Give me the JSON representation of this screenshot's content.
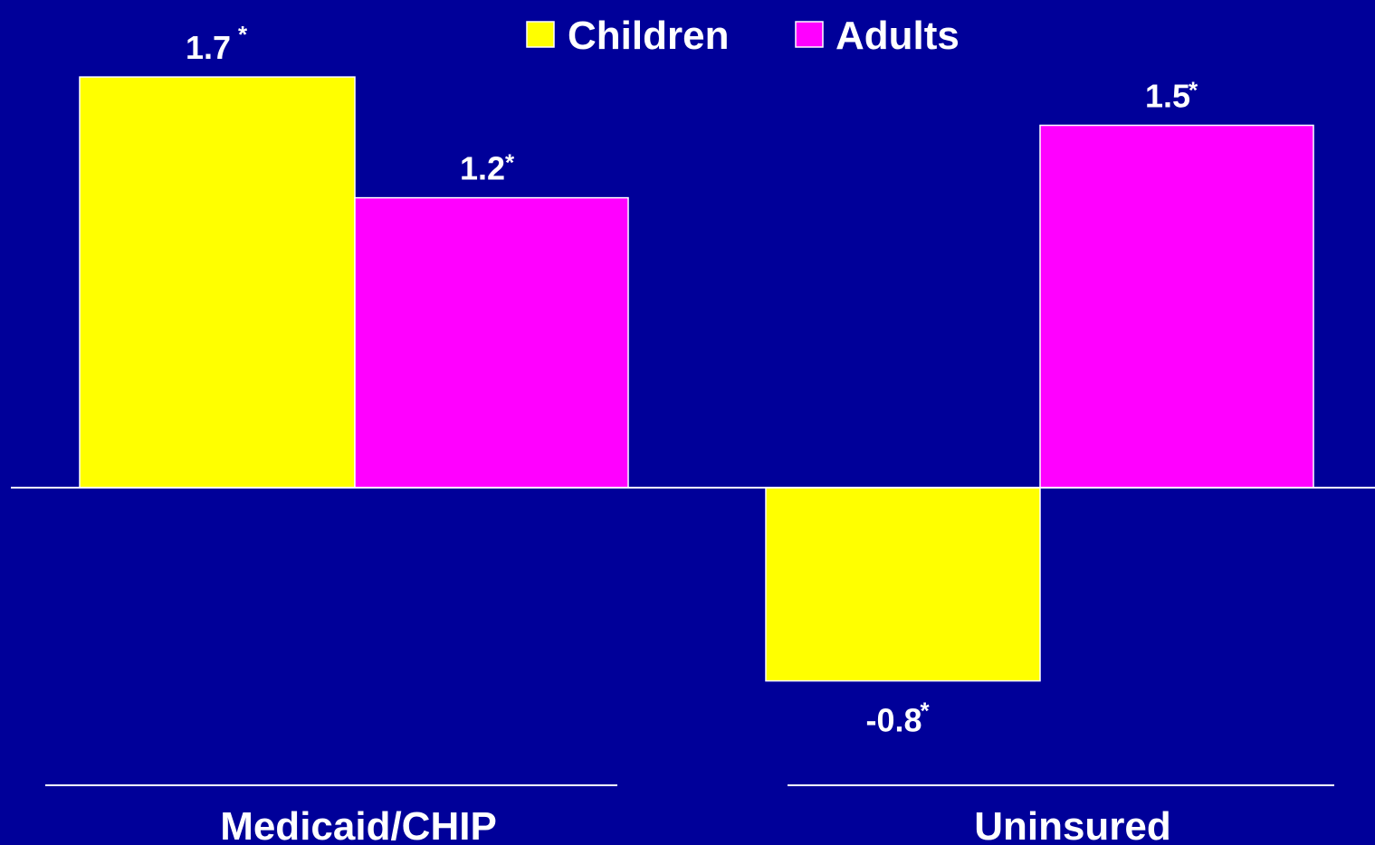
{
  "chart_data": {
    "type": "bar",
    "categories": [
      "Medicaid/CHIP",
      "Uninsured"
    ],
    "series": [
      {
        "name": "Children",
        "color": "#ffff00",
        "values": [
          1.7,
          -0.8
        ]
      },
      {
        "name": "Adults",
        "color": "#ff00ff",
        "values": [
          1.2,
          1.5
        ]
      }
    ],
    "data_labels": [
      [
        "1.7",
        "-0.8"
      ],
      [
        "1.2",
        "1.5"
      ]
    ],
    "significance_marker": "*",
    "legend_position": "top-center",
    "grid": false,
    "ylim": [
      -1.05,
      2.0
    ]
  }
}
